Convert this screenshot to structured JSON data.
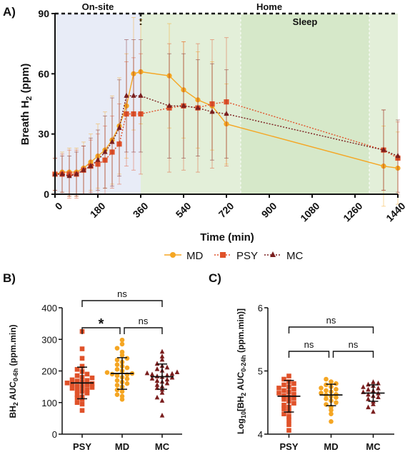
{
  "colors": {
    "md": "#F5A623",
    "psy": "#E0522A",
    "mc": "#7A1E1E",
    "onsite_band": "#E8ECF7",
    "home_band": "#E3EFD9",
    "sleep_band": "#D6E8C9"
  },
  "chart_data": [
    {
      "panel": "A)",
      "type": "line",
      "xlabel": "Time (min)",
      "ylabel": "Breath H2 (ppm)",
      "xlim": [
        0,
        1440
      ],
      "ylim": [
        0,
        90
      ],
      "xticks": [
        0,
        180,
        360,
        540,
        720,
        900,
        1080,
        1260,
        1440
      ],
      "yticks": [
        0,
        30,
        60,
        90
      ],
      "regions": [
        {
          "label": "On-site",
          "x0": 0,
          "x1": 360
        },
        {
          "label": "Home",
          "x0": 360,
          "x1": 1440
        },
        {
          "label": "Sleep",
          "x0": 780,
          "x1": 1320
        }
      ],
      "legend": {
        "position": "bottom"
      },
      "series": [
        {
          "name": "MD",
          "marker": "circle",
          "line": "solid",
          "x": [
            0,
            30,
            60,
            90,
            120,
            150,
            180,
            210,
            240,
            270,
            300,
            330,
            360,
            480,
            540,
            600,
            660,
            720,
            1380,
            1440
          ],
          "y": [
            10,
            11,
            11,
            11,
            13,
            16,
            19,
            22,
            27,
            34,
            44,
            60,
            61,
            59,
            52,
            47,
            44,
            35,
            14,
            13
          ],
          "err": [
            8,
            10,
            12,
            12,
            13,
            14,
            16,
            19,
            22,
            24,
            26,
            28,
            26,
            26,
            24,
            24,
            22,
            20,
            20,
            18
          ]
        },
        {
          "name": "PSY",
          "marker": "square",
          "line": "dotted",
          "x": [
            0,
            30,
            60,
            90,
            120,
            150,
            180,
            210,
            240,
            270,
            300,
            330,
            360,
            480,
            540,
            600,
            660,
            720,
            1380,
            1440
          ],
          "y": [
            10,
            10,
            10,
            10,
            12,
            14,
            15,
            17,
            21,
            25,
            40,
            40,
            40,
            43,
            44,
            43,
            45,
            46,
            22,
            18
          ],
          "err": [
            8,
            10,
            12,
            12,
            12,
            13,
            15,
            17,
            18,
            20,
            26,
            28,
            30,
            32,
            32,
            32,
            32,
            32,
            20,
            18
          ]
        },
        {
          "name": "MC",
          "marker": "triangle",
          "line": "dotted",
          "x": [
            0,
            30,
            60,
            90,
            120,
            150,
            180,
            210,
            240,
            270,
            300,
            330,
            360,
            480,
            540,
            600,
            660,
            720,
            1380,
            1440
          ],
          "y": [
            10,
            10,
            9,
            10,
            12,
            14,
            17,
            21,
            26,
            33,
            49,
            49,
            49,
            44,
            44,
            43,
            41,
            40,
            22,
            19
          ],
          "err": [
            8,
            9,
            10,
            11,
            12,
            14,
            15,
            18,
            22,
            24,
            28,
            28,
            28,
            26,
            26,
            24,
            24,
            22,
            20,
            18
          ]
        }
      ]
    },
    {
      "panel": "B)",
      "type": "scatter",
      "ylabel": "BH2 AUC0-6h (ppm.min)",
      "ylim": [
        0,
        400
      ],
      "yticks": [
        0,
        100,
        200,
        300,
        400
      ],
      "categories": [
        "PSY",
        "MD",
        "MC"
      ],
      "summary": [
        {
          "name": "PSY",
          "mean": 162,
          "sd_low": 112,
          "sd_high": 212
        },
        {
          "name": "MD",
          "mean": 192,
          "sd_low": 142,
          "sd_high": 242
        },
        {
          "name": "MC",
          "mean": 182,
          "sd_low": 142,
          "sd_high": 222
        }
      ],
      "comparisons": [
        {
          "from": "PSY",
          "to": "MC",
          "label": "ns"
        },
        {
          "from": "PSY",
          "to": "MD",
          "label": "*"
        },
        {
          "from": "MD",
          "to": "MC",
          "label": "ns"
        }
      ],
      "points": {
        "PSY": [
          75,
          95,
          100,
          110,
          115,
          118,
          125,
          130,
          135,
          138,
          140,
          145,
          148,
          150,
          152,
          155,
          158,
          160,
          162,
          165,
          168,
          170,
          172,
          178,
          180,
          185,
          190,
          198,
          205,
          215,
          240,
          270,
          325
        ],
        "MD": [
          110,
          120,
          125,
          135,
          140,
          150,
          155,
          160,
          165,
          170,
          175,
          180,
          185,
          188,
          190,
          192,
          195,
          200,
          205,
          210,
          215,
          220,
          228,
          235,
          240,
          250,
          260,
          272,
          285,
          298
        ],
        "MC": [
          58,
          105,
          115,
          130,
          140,
          145,
          150,
          155,
          160,
          165,
          168,
          172,
          175,
          178,
          180,
          182,
          185,
          188,
          190,
          192,
          195,
          200,
          205,
          210,
          215,
          222,
          235,
          245,
          260
        ]
      }
    },
    {
      "panel": "C)",
      "type": "scatter",
      "ylabel": "Log10[BH2 AUC0-24h (ppm.min)]",
      "ylim": [
        4,
        6
      ],
      "yticks": [
        4,
        5,
        6
      ],
      "categories": [
        "PSY",
        "MD",
        "MC"
      ],
      "summary": [
        {
          "name": "PSY",
          "mean": 4.6,
          "sd_low": 4.35,
          "sd_high": 4.85
        },
        {
          "name": "MD",
          "mean": 4.62,
          "sd_low": 4.45,
          "sd_high": 4.79
        },
        {
          "name": "MC",
          "mean": 4.65,
          "sd_low": 4.52,
          "sd_high": 4.78
        }
      ],
      "comparisons": [
        {
          "from": "PSY",
          "to": "MC",
          "label": "ns"
        },
        {
          "from": "PSY",
          "to": "MD",
          "label": "ns"
        },
        {
          "from": "MD",
          "to": "MC",
          "label": "ns"
        }
      ],
      "points": {
        "PSY": [
          4.06,
          4.15,
          4.22,
          4.28,
          4.32,
          4.36,
          4.4,
          4.43,
          4.46,
          4.49,
          4.52,
          4.55,
          4.57,
          4.59,
          4.61,
          4.63,
          4.65,
          4.67,
          4.69,
          4.71,
          4.73,
          4.75,
          4.78,
          4.8,
          4.83,
          4.87,
          4.92
        ],
        "MD": [
          4.2,
          4.32,
          4.38,
          4.43,
          4.47,
          4.5,
          4.53,
          4.56,
          4.58,
          4.6,
          4.62,
          4.63,
          4.65,
          4.67,
          4.69,
          4.71,
          4.73,
          4.75,
          4.78,
          4.8,
          4.83,
          4.87
        ],
        "MC": [
          4.35,
          4.42,
          4.47,
          4.51,
          4.55,
          4.58,
          4.6,
          4.62,
          4.64,
          4.66,
          4.68,
          4.7,
          4.72,
          4.74,
          4.76,
          4.78,
          4.8,
          4.82
        ]
      }
    }
  ]
}
